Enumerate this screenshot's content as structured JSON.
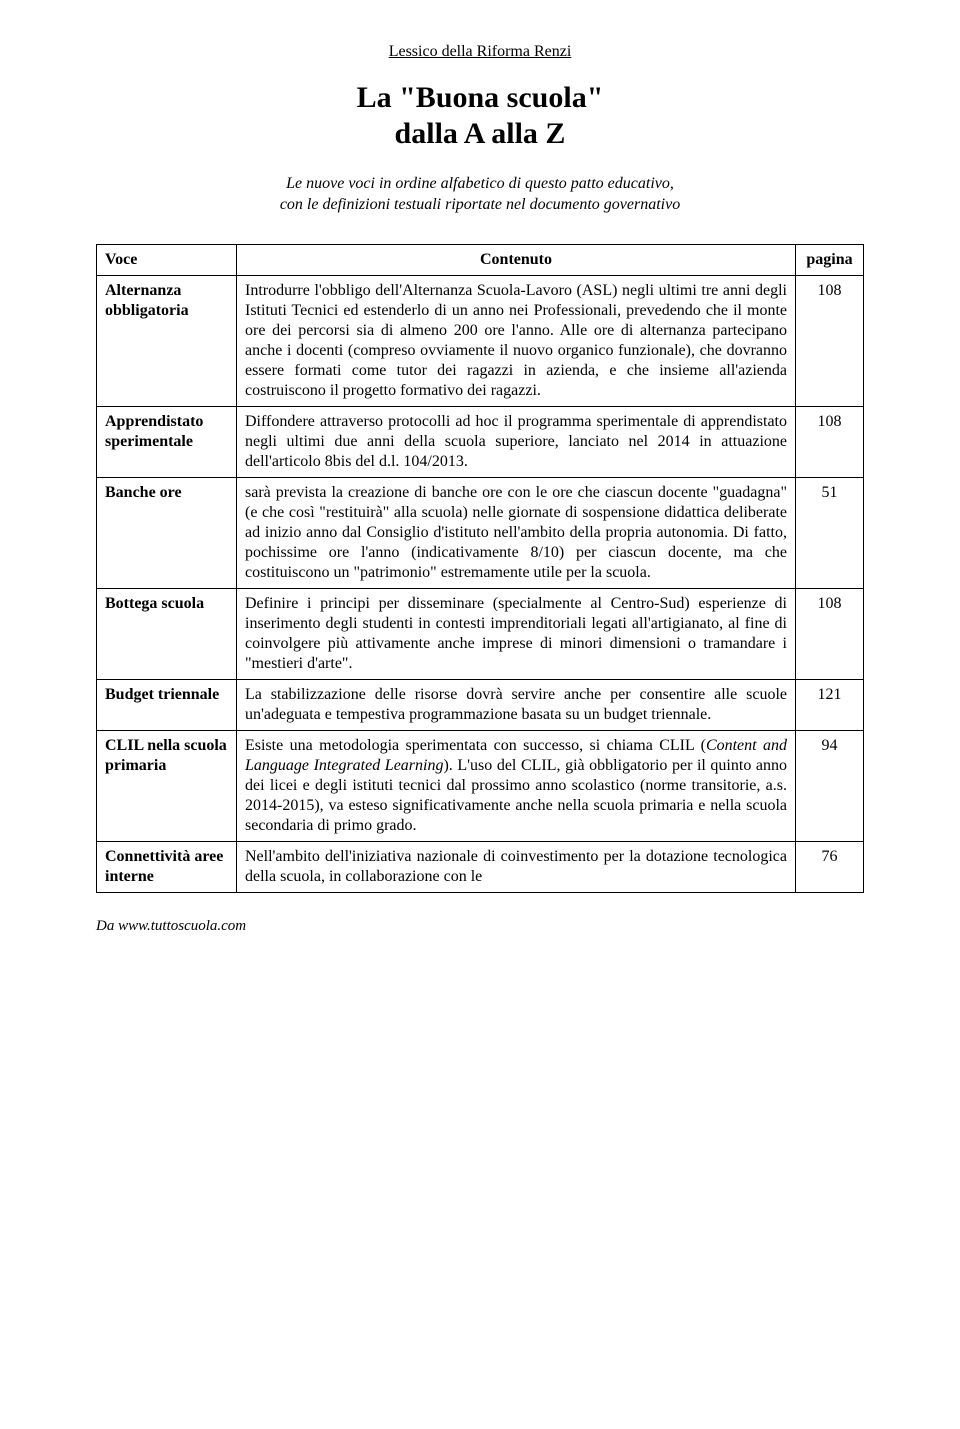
{
  "pretitle": "Lessico della Riforma Renzi",
  "title_l1": "La \"Buona scuola\"",
  "title_l2": "dalla A alla Z",
  "subtitle_l1": "Le nuove voci in ordine alfabetico di questo patto educativo,",
  "subtitle_l2": "con le definizioni testuali riportate nel documento governativo",
  "header": {
    "voce": "Voce",
    "contenuto": "Contenuto",
    "pagina": "pagina"
  },
  "rows": [
    {
      "voce": "Alternanza obbligatoria",
      "content": "Introdurre l'obbligo dell'Alternanza Scuola-Lavoro (ASL) negli ultimi tre anni degli Istituti Tecnici ed estenderlo di un anno nei Professionali, prevedendo che il monte ore dei percorsi sia di almeno 200 ore l'anno. Alle ore di alternanza partecipano anche i docenti (compreso ovviamente il nuovo organico funzionale), che dovranno essere formati come tutor dei ragazzi in azienda, e che insieme all'azienda costruiscono il progetto formativo dei ragazzi.",
      "page": "108"
    },
    {
      "voce": "Apprendistato sperimentale",
      "content": "Diffondere attraverso protocolli ad hoc il programma sperimentale di apprendistato negli ultimi due anni della scuola superiore, lanciato nel 2014 in attuazione dell'articolo  8bis del d.l. 104/2013.",
      "page": "108"
    },
    {
      "voce": "Banche ore",
      "content": "sarà prevista la creazione di banche ore con le ore che ciascun docente \"guadagna\" (e che così \"restituirà\" alla scuola) nelle giornate di sospensione didattica deliberate ad inizio anno dal Consiglio d'istituto nell'ambito della propria autonomia. Di fatto, pochissime ore l'anno (indicativamente 8/10) per ciascun docente, ma che costituiscono un \"patrimonio\" estremamente utile per la scuola.",
      "page": "51"
    },
    {
      "voce": "Bottega scuola",
      "content": "Definire i principi per disseminare (specialmente al Centro-Sud) esperienze di inserimento degli studenti in contesti imprenditoriali legati all'artigianato, al fine di coinvolgere più attivamente anche imprese di minori dimensioni o tramandare i \"mestieri d'arte\".",
      "page": "108"
    },
    {
      "voce": "Budget triennale",
      "content": "La stabilizzazione delle risorse dovrà servire anche per consentire alle scuole un'adeguata e tempestiva programmazione basata su un budget triennale.",
      "page": "121"
    },
    {
      "voce": "CLIL nella scuola primaria",
      "content": "Esiste una metodologia sperimentata con successo, si chiama CLIL (Content and Language Integrated Learning). L'uso del CLIL, già obbligatorio per il quinto anno dei licei e degli istituti tecnici dal prossimo anno scolastico (norme transitorie, a.s. 2014-2015), va esteso significativamente anche nella scuola primaria e nella scuola secondaria di primo grado.",
      "page": "94",
      "italic_span": "Content and Language Integrated Learning"
    },
    {
      "voce": "Connettività aree interne",
      "content": "Nell'ambito dell'iniziativa nazionale di coinvestimento per la dotazione tecnologica della scuola, in collaborazione con le",
      "page": "76"
    }
  ],
  "footer": "Da www.tuttoscuola.com"
}
